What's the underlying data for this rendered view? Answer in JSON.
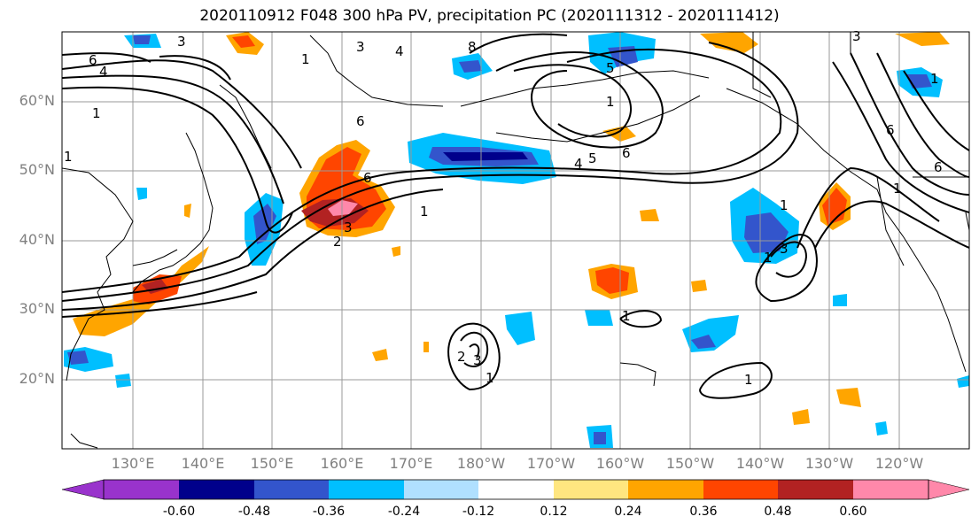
{
  "title": "2020110912 F048 300 hPa PV, precipitation PC (2020111312 - 2020111412)",
  "lat_labels": [
    "60°N",
    "50°N",
    "40°N",
    "30°N",
    "20°N"
  ],
  "lon_labels": [
    "130°E",
    "140°E",
    "150°E",
    "160°E",
    "170°E",
    "180°W",
    "170°W",
    "160°W",
    "150°W",
    "140°W",
    "130°W",
    "120°W"
  ],
  "colorbar": {
    "tick_labels": [
      "-0.60",
      "-0.48",
      "-0.36",
      "-0.24",
      "-0.12",
      "0.12",
      "0.24",
      "0.36",
      "0.48",
      "0.60"
    ],
    "colors": [
      "#9933cc",
      "#00008b",
      "#3355cc",
      "#00bfff",
      "#b0e0ff",
      "#ffffff",
      "#ffe680",
      "#ffa500",
      "#ff4500",
      "#b22222",
      "#ff88aa"
    ]
  },
  "contour_labels": [
    "6",
    "4",
    "1",
    "3",
    "4",
    "8",
    "1",
    "3",
    "5",
    "1",
    "6",
    "4",
    "5",
    "6",
    "1",
    "2",
    "3",
    "6",
    "1",
    "1",
    "3",
    "1",
    "1",
    "3",
    "1",
    "2",
    "1",
    "3",
    "1",
    "6",
    "6",
    "1"
  ]
}
